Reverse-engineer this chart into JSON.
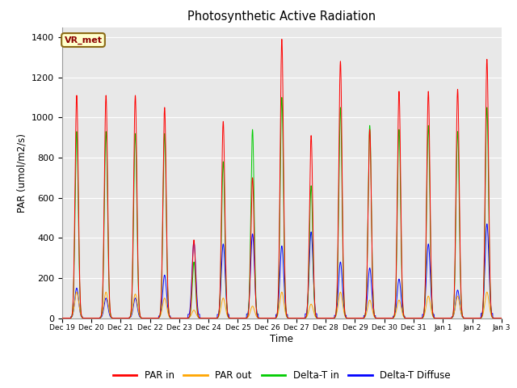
{
  "title": "Photosynthetic Active Radiation",
  "ylabel": "PAR (umol/m2/s)",
  "xlabel": "Time",
  "label_tag": "VR_met",
  "ylim": [
    0,
    1450
  ],
  "yticks": [
    0,
    200,
    400,
    600,
    800,
    1000,
    1200,
    1400
  ],
  "colors": {
    "par_in": "#FF0000",
    "par_out": "#FFA500",
    "delta_t_in": "#00CC00",
    "delta_t_diffuse": "#0000FF"
  },
  "legend": [
    "PAR in",
    "PAR out",
    "Delta-T in",
    "Delta-T Diffuse"
  ],
  "background_color": "#E8E8E8",
  "grid_color": "#FFFFFF",
  "num_days": 15,
  "samples_per_day": 288,
  "peaks_par_in": [
    1110,
    1110,
    1110,
    1050,
    390,
    980,
    700,
    1390,
    910,
    1280,
    940,
    1130,
    1130,
    1140,
    1290
  ],
  "peaks_par_out": [
    130,
    130,
    120,
    100,
    40,
    100,
    60,
    130,
    70,
    130,
    90,
    90,
    110,
    110,
    130
  ],
  "peaks_delta_t_in": [
    930,
    930,
    920,
    920,
    280,
    780,
    940,
    1100,
    660,
    1050,
    960,
    940,
    960,
    930,
    1050
  ],
  "peaks_delta_t_diffuse": [
    150,
    100,
    100,
    215,
    380,
    370,
    420,
    360,
    430,
    280,
    250,
    195,
    370,
    140,
    470
  ]
}
